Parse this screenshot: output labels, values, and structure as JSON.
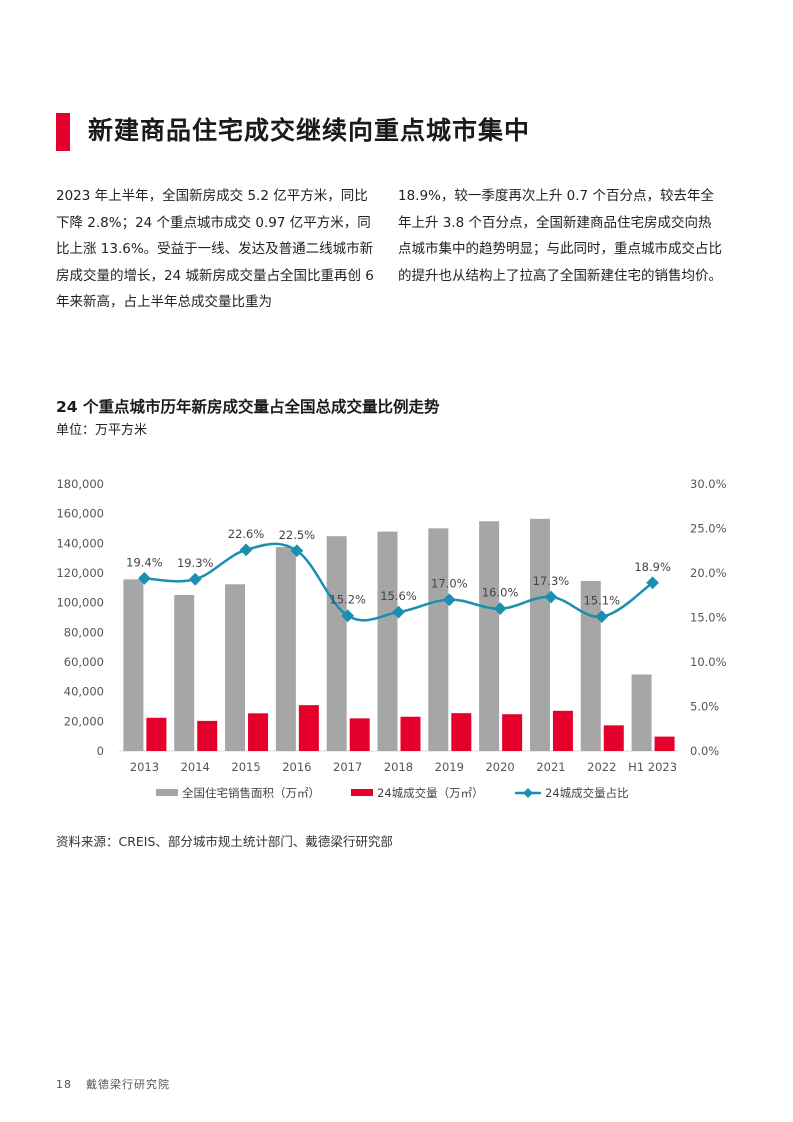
{
  "colors": {
    "accent": "#e4002b",
    "bar_gray": "#a6a6a6",
    "line_teal": "#1b8fb0"
  },
  "header": {
    "title": "新建商品住宅成交继续向重点城市集中"
  },
  "body": {
    "left_paragraph": "2023 年上半年，全国新房成交 5.2 亿平方米，同比下降 2.8%；24 个重点城市成交 0.97 亿平方米，同比上涨 13.6%。受益于一线、发达及普通二线城市新房成交量的增长，24 城新房成交量占全国比重再创 6 年来新高，占上半年总成交量比重为",
    "right_paragraph": "18.9%，较一季度再次上升 0.7 个百分点，较去年全年上升 3.8 个百分点，全国新建商品住宅房成交向热点城市集中的趋势明显；与此同时，重点城市成交占比的提升也从结构上了拉高了全国新建住宅的销售均价。"
  },
  "chart": {
    "title": "24 个重点城市历年新房成交量占全国总成交量比例走势",
    "unit": "单位：万平方米"
  },
  "chart_data": {
    "type": "bar",
    "categories": [
      "2013",
      "2014",
      "2015",
      "2016",
      "2017",
      "2018",
      "2019",
      "2020",
      "2021",
      "2022",
      "H1 2023"
    ],
    "series": [
      {
        "name": "全国住宅销售面积（万㎡）",
        "type": "bar",
        "axis": "left",
        "values": [
          115700,
          105200,
          112400,
          137500,
          144800,
          147900,
          150100,
          154900,
          156500,
          114600,
          51600
        ]
      },
      {
        "name": "24城成交量（万㎡）",
        "type": "bar",
        "axis": "left",
        "values": [
          22400,
          20300,
          25400,
          30900,
          22000,
          23100,
          25500,
          24800,
          27100,
          17300,
          9700
        ]
      },
      {
        "name": "24城成交量占比",
        "type": "line",
        "axis": "right",
        "values": [
          19.4,
          19.3,
          22.6,
          22.5,
          15.2,
          15.6,
          17.0,
          16.0,
          17.3,
          15.1,
          18.9
        ],
        "labels": [
          "19.4%",
          "19.3%",
          "22.6%",
          "22.5%",
          "15.2%",
          "15.6%",
          "17.0%",
          "16.0%",
          "17.3%",
          "15.1%",
          "18.9%"
        ]
      }
    ],
    "y_left": {
      "range": [
        0,
        180000
      ],
      "ticks": [
        "0",
        "20,000",
        "40,000",
        "60,000",
        "80,000",
        "100,000",
        "120,000",
        "140,000",
        "160,000",
        "180,000"
      ]
    },
    "y_right": {
      "range": [
        0,
        30
      ],
      "ticks": [
        "0.0%",
        "5.0%",
        "10.0%",
        "15.0%",
        "20.0%",
        "25.0%",
        "30.0%"
      ]
    },
    "grid": false,
    "legend": "bottom"
  },
  "source": {
    "text": "资料来源：CREIS、部分城市规土统计部门、戴德梁行研究部"
  },
  "footer": {
    "page_number": "18",
    "org": "戴德梁行研究院"
  }
}
